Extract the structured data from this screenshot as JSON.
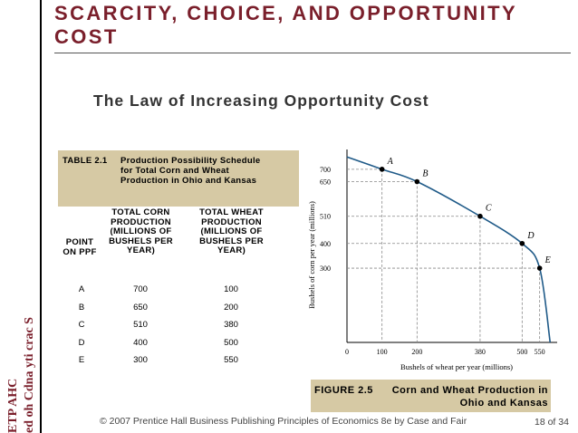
{
  "slide": {
    "title": "SCARCITY, CHOICE, AND OPPORTUNITY COST",
    "vertical_label_line1": "ETP AHC",
    "vertical_label_line2": "ed oh Cdna yti crac S",
    "subtitle": "The Law of Increasing Opportunity Cost"
  },
  "table": {
    "number": "TABLE 2.1",
    "caption": "Production Possibility Schedule for Total Corn and Wheat Production in Ohio and Kansas",
    "headers": [
      "POINT ON PPF",
      "TOTAL CORN PRODUCTION (MILLIONS OF BUSHELS PER YEAR)",
      "TOTAL WHEAT PRODUCTION (MILLIONS OF BUSHELS PER YEAR)"
    ],
    "rows": [
      {
        "point": "A",
        "corn": "700",
        "wheat": "100"
      },
      {
        "point": "B",
        "corn": "650",
        "wheat": "200"
      },
      {
        "point": "C",
        "corn": "510",
        "wheat": "380"
      },
      {
        "point": "D",
        "corn": "400",
        "wheat": "500"
      },
      {
        "point": "E",
        "corn": "300",
        "wheat": "550"
      }
    ]
  },
  "figure": {
    "number": "FIGURE 2.5",
    "caption": "Corn and Wheat Production in Ohio and Kansas"
  },
  "chart_data": {
    "type": "line",
    "xlabel": "Bushels of wheat per year (millions)",
    "ylabel": "Bushels of corn per year (millions)",
    "x_ticks": [
      "0",
      "100",
      "200",
      "380",
      "500",
      "550"
    ],
    "y_ticks": [
      "700",
      "650",
      "510",
      "400",
      "300"
    ],
    "x_tick_values": [
      0,
      100,
      200,
      380,
      500,
      550
    ],
    "y_tick_values": [
      700,
      650,
      510,
      400,
      300
    ],
    "points": [
      {
        "label": "A",
        "x": 100,
        "y": 700
      },
      {
        "label": "B",
        "x": 200,
        "y": 650
      },
      {
        "label": "C",
        "x": 380,
        "y": 510
      },
      {
        "label": "D",
        "x": 500,
        "y": 400
      },
      {
        "label": "E",
        "x": 550,
        "y": 300
      }
    ],
    "curve": [
      [
        0,
        750
      ],
      [
        100,
        700
      ],
      [
        200,
        650
      ],
      [
        380,
        510
      ],
      [
        500,
        400
      ],
      [
        550,
        300
      ],
      [
        580,
        0
      ]
    ],
    "xlim": [
      0,
      600
    ],
    "ylim": [
      0,
      780
    ],
    "curve_color": "#1f5a88"
  },
  "footer": {
    "text": "© 2007 Prentice Hall Business Publishing   Principles of Economics 8e by Case and Fair",
    "page": "18 of 34"
  }
}
